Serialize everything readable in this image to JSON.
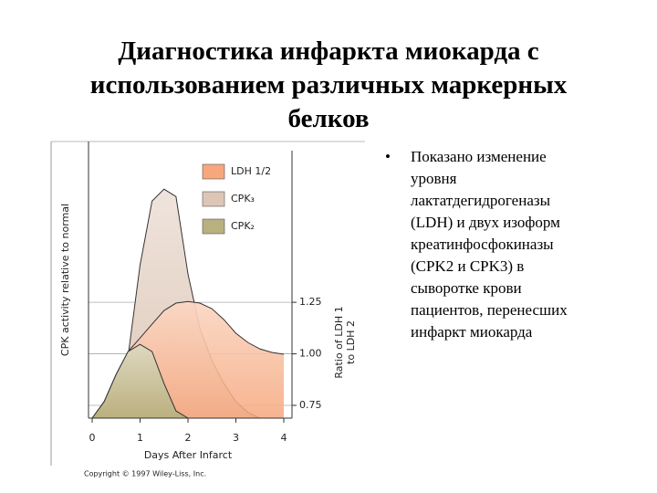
{
  "title": [
    "Диагностика инфаркта миокарда с",
    "использованием различных маркерных",
    "белков"
  ],
  "bullet": [
    "Показано изменение",
    "уровня",
    "лактатдегидрогеназы",
    "(LDH) и двух изоформ",
    "креатинфосфокиназы",
    "(CPK2 и CPK3) в",
    "сыворотке крови",
    "пациентов, перенесших",
    "инфаркт миокарда"
  ],
  "chart_data": {
    "type": "area",
    "x_label": "Days After Infarct",
    "y_label": "CPK activity relative to normal",
    "y2_label": [
      "Ratio of LDH 1",
      "to LDH 2"
    ],
    "copyright": "Copyright © 1997 Wiley-Liss, Inc.",
    "x": [
      0,
      0.25,
      0.5,
      0.75,
      1,
      1.25,
      1.5,
      1.75,
      2,
      2.25,
      2.5,
      2.75,
      3,
      3.25,
      3.5,
      3.75,
      4
    ],
    "xlim": [
      0,
      4
    ],
    "xticks": [
      0,
      1,
      2,
      3,
      4
    ],
    "ylim": [
      0.688,
      2.03
    ],
    "y2lim": [
      0.688,
      2.03
    ],
    "y2ticks": [
      0.75,
      {
        "value": 1.0,
        "label": "1.00"
      },
      1.25
    ],
    "series": [
      {
        "name": "CPK₃",
        "color": "#ddc6b6",
        "values": [
          0.688,
          0.723,
          0.812,
          0.989,
          1.431,
          1.741,
          1.799,
          1.763,
          1.387,
          1.122,
          0.967,
          0.856,
          0.768,
          0.715,
          0.688,
          null,
          null
        ]
      },
      {
        "name": "LDH 1/2",
        "color": "#f6a77c",
        "axis": "y2",
        "values": [
          0.688,
          0.768,
          0.9,
          1.011,
          1.077,
          1.144,
          1.21,
          1.246,
          1.254,
          1.246,
          1.219,
          1.166,
          1.1,
          1.055,
          1.024,
          1.007,
          0.998
        ]
      },
      {
        "name": "CPK₂",
        "color": "#b8b07e",
        "values": [
          0.688,
          0.768,
          0.9,
          1.011,
          1.046,
          1.011,
          0.856,
          0.723,
          0.688,
          null,
          null,
          null,
          null,
          null,
          null,
          null,
          null
        ]
      }
    ],
    "legend_order": [
      1,
      0,
      2
    ]
  }
}
